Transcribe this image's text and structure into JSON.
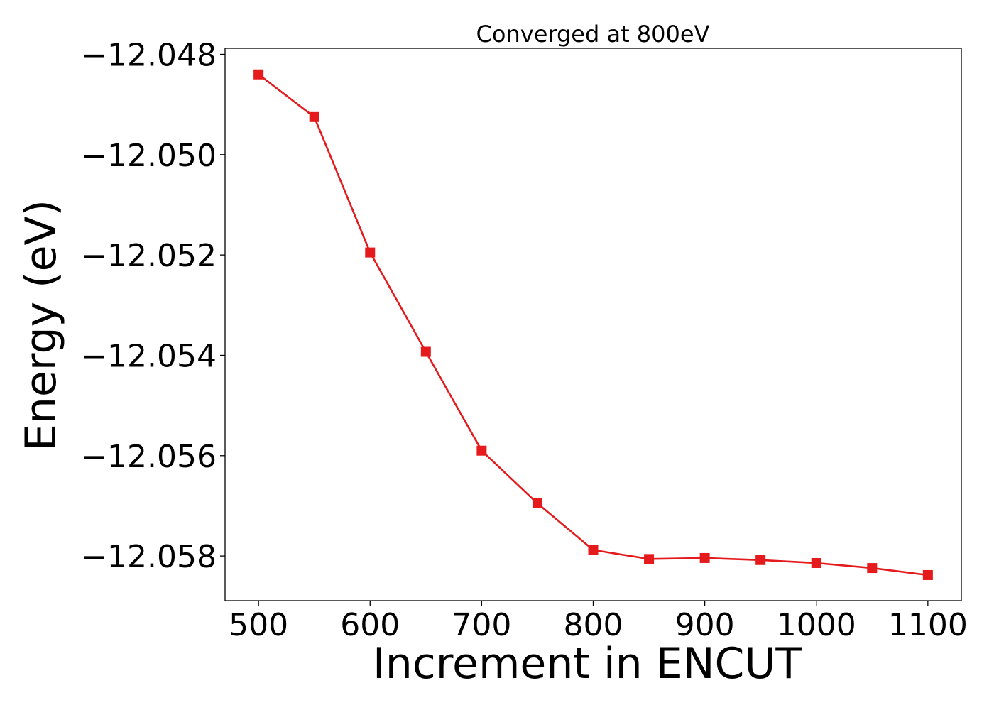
{
  "chart_data": {
    "type": "line",
    "title": "Converged at 800eV",
    "xlabel": "Increment in ENCUT",
    "ylabel": "Energy (eV)",
    "x": [
      500,
      550,
      600,
      650,
      700,
      750,
      800,
      850,
      900,
      950,
      1000,
      1050,
      1100
    ],
    "series": [
      {
        "values": [
          -12.0484,
          -12.04925,
          -12.05195,
          -12.05393,
          -12.0559,
          -12.05695,
          -12.05788,
          -12.05806,
          -12.05804,
          -12.05808,
          -12.05814,
          -12.05824,
          -12.05838
        ],
        "color": "#e41a1c",
        "marker": "square"
      }
    ],
    "xlim": [
      470,
      1130
    ],
    "ylim": [
      -12.05889,
      -12.04788
    ],
    "xticks": [
      500,
      600,
      700,
      800,
      900,
      1000,
      1100
    ],
    "xtick_labels": [
      "500",
      "600",
      "700",
      "800",
      "900",
      "1000",
      "1100"
    ],
    "yticks": [
      -12.048,
      -12.05,
      -12.052,
      -12.054,
      -12.056,
      -12.058
    ],
    "ytick_labels": [
      "−12.048",
      "−12.050",
      "−12.052",
      "−12.054",
      "−12.056",
      "−12.058"
    ],
    "grid": false,
    "legend": "none"
  }
}
